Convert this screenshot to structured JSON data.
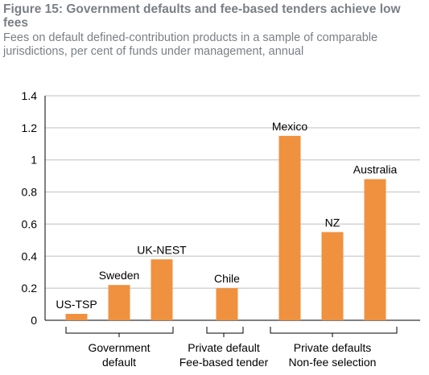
{
  "chart_data": {
    "type": "bar",
    "title": "Figure 15: Government defaults and fee-based tenders achieve low fees",
    "subtitle": "Fees on default defined-contribution products in a sample of comparable jurisdictions, per cent of funds under management, annual",
    "categories": [
      "US-TSP",
      "Sweden",
      "UK-NEST",
      "Chile",
      "Mexico",
      "NZ",
      "Australia"
    ],
    "values": [
      0.04,
      0.22,
      0.38,
      0.2,
      1.15,
      0.55,
      0.88
    ],
    "ylim": [
      0,
      1.4
    ],
    "yticks": [
      "0",
      "0.2",
      "0.4",
      "0.6",
      "0.8",
      "1",
      "1.2",
      "1.4"
    ],
    "grid": true,
    "bar_color": "#f0913f",
    "grid_color": "#bfbfbf",
    "groups": [
      {
        "label_lines": [
          "Government",
          "default"
        ],
        "members": [
          "US-TSP",
          "Sweden",
          "UK-NEST"
        ]
      },
      {
        "label_lines": [
          "Private default",
          "Fee-based tender"
        ],
        "members": [
          "Chile"
        ]
      },
      {
        "label_lines": [
          "Private defaults",
          "Non-fee selection"
        ],
        "members": [
          "Mexico",
          "NZ",
          "Australia"
        ]
      }
    ]
  }
}
